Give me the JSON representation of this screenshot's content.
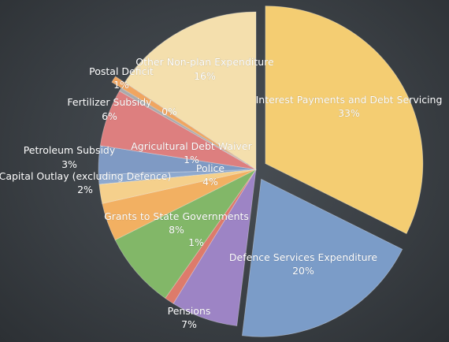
{
  "chart_data": {
    "type": "pie",
    "title": "",
    "slices": [
      {
        "label": "Interest Payments and Debt Servicing",
        "pct_text": "33%",
        "value": 33,
        "color": "#f4cd72",
        "exploded": true
      },
      {
        "label": "Defence Services Expenditure",
        "pct_text": "20%",
        "value": 20,
        "color": "#7b9cc8",
        "exploded": true
      },
      {
        "label": "Pensions",
        "pct_text": "7%",
        "value": 7,
        "color": "#9d84c5",
        "exploded": false
      },
      {
        "label": "",
        "pct_text": "1%",
        "value": 1,
        "color": "#dd7b6b",
        "exploded": false
      },
      {
        "label": "Grants to State Governments",
        "pct_text": "8%",
        "value": 8,
        "color": "#82b768",
        "exploded": false
      },
      {
        "label": "Police",
        "pct_text": "4%",
        "value": 4,
        "color": "#f2b062",
        "exploded": false
      },
      {
        "label": "Capital Outlay (excluding Defence)",
        "pct_text": "2%",
        "value": 2,
        "color": "#f5d08c",
        "exploded": false
      },
      {
        "label": "Agricultural Debt Waiver",
        "pct_text": "1%",
        "value": 1,
        "color": "#8ea9cf",
        "exploded": false
      },
      {
        "label": "Petroleum Subsidy",
        "pct_text": "3%",
        "value": 3,
        "color": "#7f9ac4",
        "exploded": false
      },
      {
        "label": "Fertilizer Subsidy",
        "pct_text": "6%",
        "value": 6,
        "color": "#dd7f7f",
        "exploded": false
      },
      {
        "label": "",
        "pct_text": "0%",
        "value": 0.35,
        "color": "#a9aaac",
        "exploded": false
      },
      {
        "label": "Postal Deficit",
        "pct_text": "1%",
        "value": 0.7,
        "color": "#f0a560",
        "exploded": true
      },
      {
        "label": "Other Non-plan Expenditure",
        "pct_text": "16%",
        "value": 16,
        "color": "#f4dfad",
        "exploded": false
      }
    ]
  }
}
